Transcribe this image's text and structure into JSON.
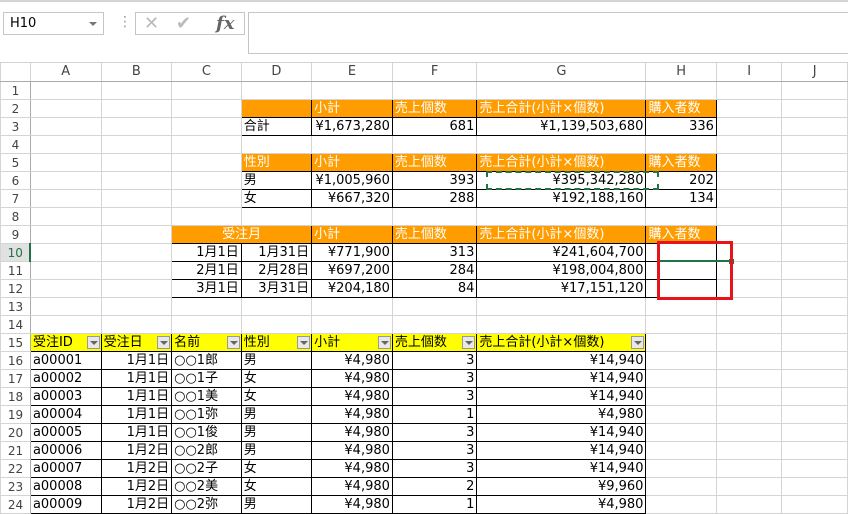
{
  "name_box": {
    "value": "H10"
  },
  "formula_bar": {
    "cancel_icon": "x-icon",
    "enter_icon": "check-icon",
    "function_label": "fx",
    "value": ""
  },
  "columns": [
    "A",
    "B",
    "C",
    "D",
    "E",
    "F",
    "G",
    "H",
    "I",
    "J"
  ],
  "selected_cell": "H10",
  "highlight_range": "H10:H12",
  "copy_marquee_cell": "G6",
  "colors": {
    "orange_header": "#ff9c00",
    "yellow_header": "#ffff00",
    "selection": "#217346",
    "annotation_red": "#e8141c"
  },
  "cells": {
    "D2": "",
    "E2": "小計",
    "F2": "売上個数",
    "G2": "売上合計(小計×個数)",
    "H2": "購入者数",
    "D3": "合計",
    "E3": "¥1,673,280",
    "F3": "681",
    "G3": "¥1,139,503,680",
    "H3": "336",
    "D5": "性別",
    "E5": "小計",
    "F5": "売上個数",
    "G5": "売上合計(小計×個数)",
    "H5": "購入者数",
    "D6": "男",
    "E6": "¥1,005,960",
    "F6": "393",
    "G6": "¥395,342,280",
    "H6": "202",
    "D7": "女",
    "E7": "¥667,320",
    "F7": "288",
    "G7": "¥192,188,160",
    "H7": "134",
    "C9": "受注月",
    "E9": "小計",
    "F9": "売上個数",
    "G9": "売上合計(小計×個数)",
    "H9": "購入者数",
    "C10": "1月1日",
    "D10": "1月31日",
    "E10": "¥771,900",
    "F10": "313",
    "G10": "¥241,604,700",
    "H10": "",
    "C11": "2月1日",
    "D11": "2月28日",
    "E11": "¥697,200",
    "F11": "284",
    "G11": "¥198,004,800",
    "H11": "",
    "C12": "3月1日",
    "D12": "3月31日",
    "E12": "¥204,180",
    "F12": "84",
    "G12": "¥17,151,120",
    "H12": "",
    "A15": "受注ID",
    "B15": "受注日",
    "C15": "名前",
    "D15": "性別",
    "E15": "小計",
    "F15": "売上個数",
    "G15": "売上合計(小計×個数)",
    "A16": "a00001",
    "B16": "1月1日",
    "C16": "○○1郎",
    "D16": "男",
    "E16": "¥4,980",
    "F16": "3",
    "G16": "¥14,940",
    "A17": "a00002",
    "B17": "1月1日",
    "C17": "○○1子",
    "D17": "女",
    "E17": "¥4,980",
    "F17": "3",
    "G17": "¥14,940",
    "A18": "a00003",
    "B18": "1月1日",
    "C18": "○○1美",
    "D18": "女",
    "E18": "¥4,980",
    "F18": "3",
    "G18": "¥14,940",
    "A19": "a00004",
    "B19": "1月1日",
    "C19": "○○1弥",
    "D19": "男",
    "E19": "¥4,980",
    "F19": "1",
    "G19": "¥4,980",
    "A20": "a00005",
    "B20": "1月1日",
    "C20": "○○1俊",
    "D20": "男",
    "E20": "¥4,980",
    "F20": "3",
    "G20": "¥14,940",
    "A21": "a00006",
    "B21": "1月2日",
    "C21": "○○2郎",
    "D21": "男",
    "E21": "¥4,980",
    "F21": "3",
    "G21": "¥14,940",
    "A22": "a00007",
    "B22": "1月2日",
    "C22": "○○2子",
    "D22": "女",
    "E22": "¥4,980",
    "F22": "3",
    "G22": "¥14,940",
    "A23": "a00008",
    "B23": "1月2日",
    "C23": "○○2美",
    "D23": "女",
    "E23": "¥4,980",
    "F23": "2",
    "G23": "¥9,960",
    "A24": "a00009",
    "B24": "1月2日",
    "C24": "○○2弥",
    "D24": "男",
    "E24": "¥4,980",
    "F24": "1",
    "G24": "¥4,980"
  }
}
